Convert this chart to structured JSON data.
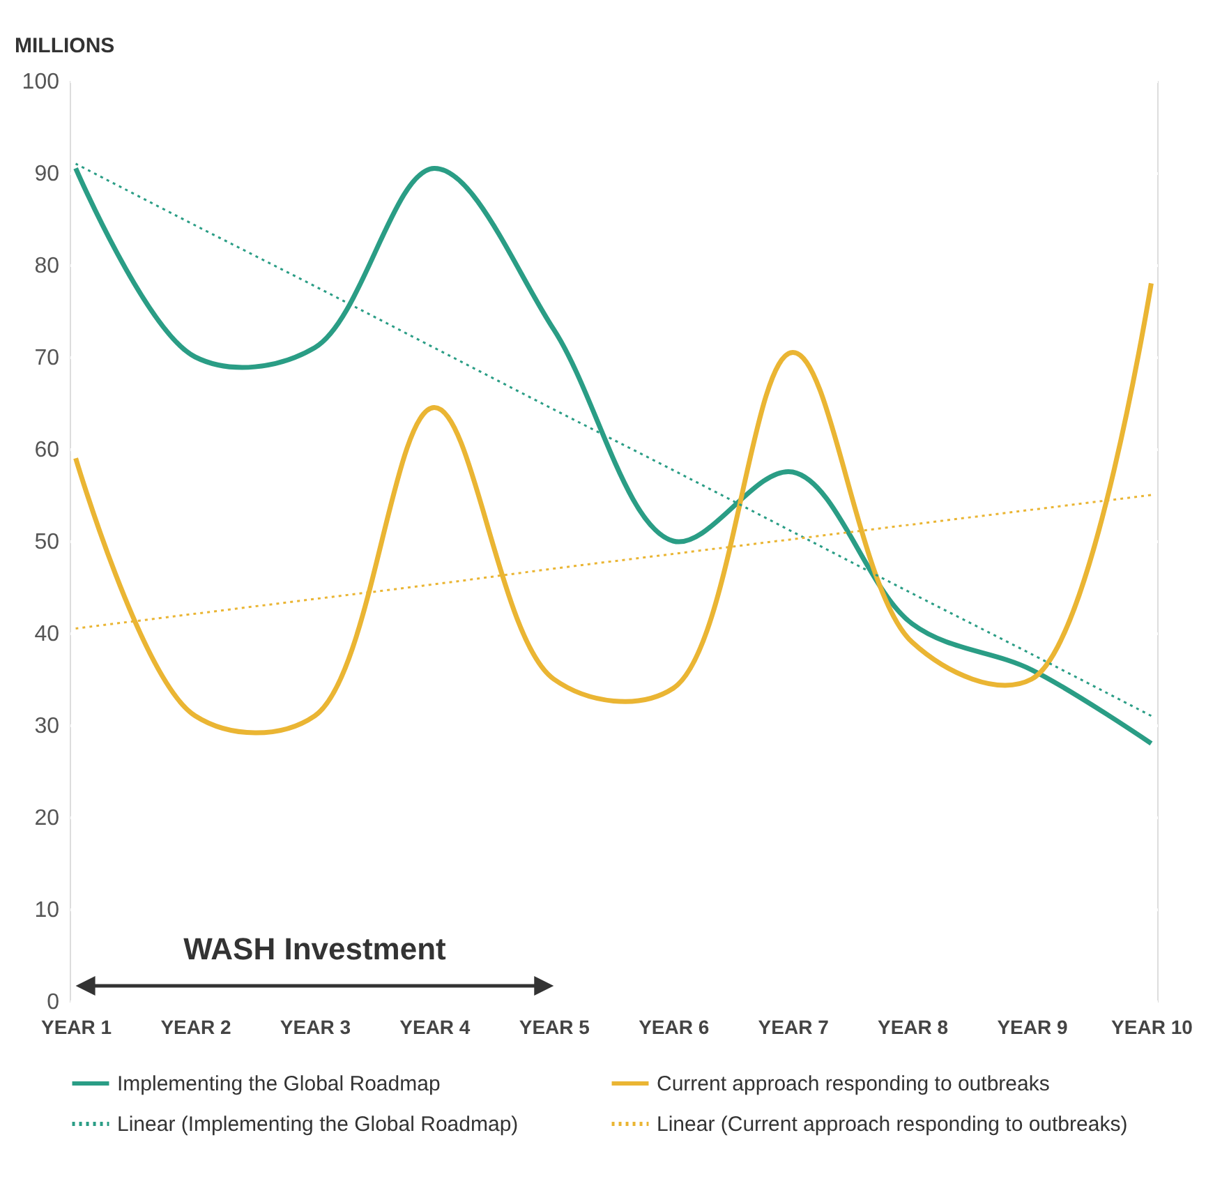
{
  "chart_data": {
    "type": "line",
    "ylabel": "MILLIONS",
    "categories": [
      "YEAR 1",
      "YEAR 2",
      "YEAR 3",
      "YEAR 4",
      "YEAR 5",
      "YEAR 6",
      "YEAR 7",
      "YEAR 8",
      "YEAR 9",
      "YEAR 10"
    ],
    "series": [
      {
        "name": "Implementing the Global Roadmap",
        "color": "#2a9d85",
        "line_style": "solid",
        "values": [
          90.5,
          70,
          71,
          90.5,
          73,
          50,
          57.5,
          41,
          36,
          28
        ]
      },
      {
        "name": "Current approach responding to outbreaks",
        "color": "#eab533",
        "line_style": "solid",
        "values": [
          59,
          31,
          31,
          64.5,
          35,
          34,
          70.5,
          39,
          35,
          78
        ]
      },
      {
        "name": "Linear (Implementing the Global Roadmap)",
        "color": "#2a9d85",
        "line_style": "dotted",
        "values": [
          91,
          84.3,
          77.7,
          71,
          64.3,
          57.7,
          51,
          44.3,
          37.7,
          31
        ]
      },
      {
        "name": "Linear (Current approach responding to outbreaks)",
        "color": "#eab533",
        "line_style": "dotted",
        "values": [
          40.5,
          42.1,
          43.7,
          45.3,
          47,
          48.6,
          50.2,
          51.8,
          53.4,
          55
        ]
      }
    ],
    "ylim": [
      0,
      100
    ],
    "yticks": [
      0,
      10,
      20,
      30,
      40,
      50,
      60,
      70,
      80,
      90,
      100
    ],
    "grid": "y",
    "legend": "bottom",
    "annotations": [
      "WASH Investment"
    ]
  }
}
